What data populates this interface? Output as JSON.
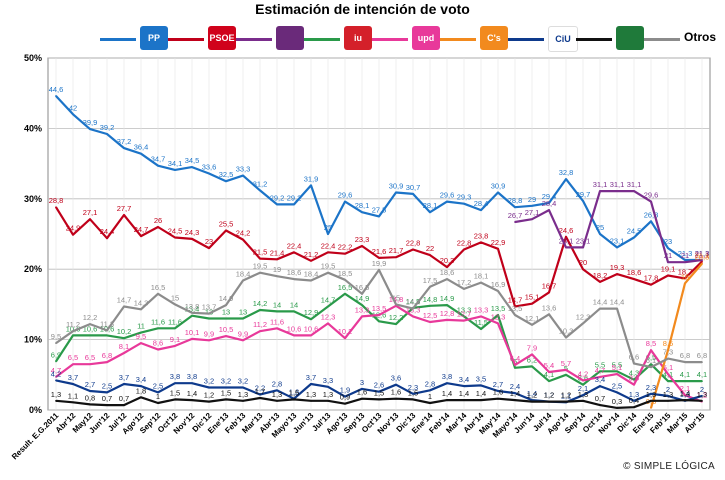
{
  "page": {
    "title": "Estimación de intención de voto",
    "credit": "© SIMPLE LÓGICA"
  },
  "legend": [
    {
      "key": "PP",
      "label": "PP",
      "color": "#1c74c8",
      "logo_bg": "#1c74c8",
      "text": false
    },
    {
      "key": "PSOE",
      "label": "PSOE",
      "color": "#c0001a",
      "logo_bg": "#d0021b",
      "text": false
    },
    {
      "key": "Podemos",
      "label": "",
      "color": "#7a2d8c",
      "logo_bg": "#6a2a7a",
      "text": false
    },
    {
      "key": "IU",
      "label": "iu",
      "color": "#2a9a4a",
      "logo_bg": "#d4202a",
      "text": false
    },
    {
      "key": "UPyD",
      "label": "upd",
      "color": "#e8399a",
      "logo_bg": "#e8399a",
      "text": false
    },
    {
      "key": "Cs",
      "label": "C's",
      "color": "#f28a1e",
      "logo_bg": "#f28a1e",
      "text": false
    },
    {
      "key": "CiU",
      "label": "CiU",
      "color": "#0e3a8c",
      "logo_bg": "#ffffff",
      "text": false
    },
    {
      "key": "PNV",
      "label": "",
      "color": "#111111",
      "logo_bg": "#1f7a3a",
      "text": false
    },
    {
      "key": "Otros",
      "label": "Otros",
      "color": "#8c8c8c",
      "logo_bg": "",
      "text": true
    }
  ],
  "chart_data": {
    "type": "line",
    "title": "Estimación de intención de voto",
    "ylim": [
      0,
      50
    ],
    "yticks": [
      "0%",
      "10%",
      "20%",
      "30%",
      "40%",
      "50%"
    ],
    "ytick_values": [
      0,
      10,
      20,
      30,
      40,
      50
    ],
    "grid": true,
    "categories": [
      "Result. E.G.2011",
      "Abr'12",
      "May12",
      "Jun'12",
      "Jul'12",
      "Ago'12",
      "Sep'12",
      "Oct'12",
      "Nov'12",
      "Dic'12",
      "Ene'13",
      "Feb'13",
      "Mar'13",
      "Abr'13",
      "May'13",
      "Jun'13",
      "Jul'13",
      "Ago'13",
      "Sep'13",
      "Oct'13",
      "Nov'13",
      "Dic'13",
      "Ene'14",
      "Feb'14",
      "Mar'14",
      "Abr'14",
      "May'14",
      "Mayo'14",
      "Jun'14",
      "Jul'14",
      "Ago'14",
      "Sep'14",
      "Oct'14",
      "Nov'14",
      "Dic'14",
      "Ene'15",
      "Feb'15",
      "Mar'15",
      "Abr'15"
    ],
    "x_labels": [
      "Result. E.G.2011",
      "Abr'12",
      "May12",
      "Jun'12",
      "Jul'12",
      "Ago'12",
      "Sep'12",
      "Oct'12",
      "Nov'12",
      "Dic'12",
      "Ene'13",
      "Feb'13",
      "Mar'13",
      "Abr'13",
      "Mayo'13",
      "Jun'13",
      "Jul'13",
      "Ago'13",
      "Sep'13",
      "Oct'13",
      "Nov'13",
      "Dic'13",
      "Ene'14",
      "Feb'14",
      "Mar'14",
      "Abr'14",
      "May'14",
      "Mayo'14",
      "Jun'14",
      "Jul'14",
      "Ago'14",
      "Sep'14",
      "Oct'14",
      "Nov'14",
      "Dic'14",
      "Ene'15",
      "Feb'15",
      "Mar'15",
      "Abr'15"
    ],
    "series": [
      {
        "name": "PP",
        "color": "#1c74c8",
        "values": [
          44.6,
          42.0,
          39.9,
          39.2,
          37.2,
          36.4,
          34.7,
          34.1,
          34.5,
          33.6,
          32.5,
          33.3,
          31.2,
          29.2,
          29.2,
          31.9,
          25.0,
          29.6,
          28.1,
          27.5,
          30.9,
          30.7,
          28.1,
          29.6,
          29.3,
          28.4,
          30.9,
          28.8,
          29.0,
          29.4,
          32.8,
          29.7,
          25.0,
          23.1,
          24.5,
          26.8,
          23.0,
          21.3,
          21.3
        ]
      },
      {
        "name": "PSOE",
        "color": "#c0001a",
        "values": [
          28.8,
          24.9,
          27.1,
          24.4,
          27.7,
          24.7,
          26.0,
          24.5,
          24.3,
          23.0,
          25.5,
          24.2,
          21.5,
          21.4,
          22.4,
          21.2,
          22.4,
          22.2,
          23.3,
          21.6,
          21.7,
          22.8,
          22.0,
          20.3,
          22.8,
          23.8,
          22.9,
          14.7,
          15.1,
          16.7,
          24.6,
          20.0,
          18.2,
          19.3,
          18.6,
          17.8,
          19.1,
          18.7,
          21.1
        ]
      },
      {
        "name": "Podemos",
        "color": "#7a2d8c",
        "values": [
          null,
          null,
          null,
          null,
          null,
          null,
          null,
          null,
          null,
          null,
          null,
          null,
          null,
          null,
          null,
          null,
          null,
          null,
          null,
          null,
          null,
          null,
          null,
          null,
          null,
          null,
          null,
          26.7,
          27.1,
          28.4,
          23.1,
          23.1,
          31.1,
          31.1,
          31.1,
          29.6,
          21.0,
          21.0,
          21.3
        ]
      },
      {
        "name": "IU",
        "color": "#2a9a4a",
        "values": [
          6.9,
          10.6,
          10.6,
          10.6,
          10.2,
          11.0,
          11.6,
          11.6,
          13.4,
          13.0,
          13.0,
          13.0,
          14.2,
          14.0,
          14.0,
          12.9,
          14.7,
          16.5,
          14.9,
          12.6,
          12.2,
          14.5,
          14.8,
          14.9,
          13.3,
          11.5,
          13.5,
          6.0,
          6.2,
          4.1,
          5.0,
          3.6,
          5.5,
          5.5,
          4.3,
          6.5,
          4.1,
          4.1,
          4.1
        ]
      },
      {
        "name": "UPyD",
        "color": "#e8399a",
        "values": [
          4.7,
          6.5,
          6.5,
          6.8,
          8.1,
          9.5,
          8.6,
          9.1,
          10.1,
          9.9,
          10.5,
          9.9,
          11.2,
          11.6,
          10.6,
          10.6,
          12.3,
          10.2,
          13.3,
          13.5,
          14.8,
          13.3,
          12.5,
          12.8,
          12.7,
          13.3,
          12.3,
          6.4,
          7.9,
          5.4,
          5.7,
          4.2,
          4.7,
          5.1,
          3.6,
          8.5,
          5.1,
          2.1,
          1.2
        ]
      },
      {
        "name": "C's",
        "color": "#f28a1e",
        "values": [
          null,
          null,
          null,
          null,
          null,
          null,
          null,
          null,
          null,
          null,
          null,
          null,
          null,
          null,
          null,
          null,
          null,
          null,
          null,
          null,
          null,
          null,
          null,
          null,
          null,
          null,
          null,
          null,
          null,
          null,
          null,
          null,
          null,
          null,
          null,
          0.3,
          8.5,
          18.0,
          20.8
        ]
      },
      {
        "name": "CiU",
        "color": "#0e3a8c",
        "values": [
          4.2,
          3.7,
          2.7,
          2.5,
          3.7,
          3.4,
          2.5,
          3.8,
          3.8,
          3.2,
          3.2,
          3.2,
          2.2,
          2.8,
          1.6,
          3.7,
          3.3,
          1.9,
          3.0,
          2.6,
          3.6,
          2.3,
          2.8,
          3.8,
          3.4,
          3.5,
          2.7,
          2.4,
          1.4,
          1.2,
          1.1,
          2.1,
          3.4,
          2.5,
          1.3,
          2.3,
          2.0,
          1.3,
          2.0
        ]
      },
      {
        "name": "PNV",
        "color": "#111111",
        "values": [
          1.3,
          1.1,
          0.8,
          0.7,
          0.7,
          1.8,
          1.0,
          1.5,
          1.4,
          1.2,
          1.5,
          1.3,
          1.7,
          1.3,
          1.5,
          1.3,
          1.3,
          0.9,
          1.6,
          1.5,
          1.6,
          1.5,
          1.0,
          1.4,
          1.4,
          1.4,
          1.6,
          1.4,
          1.2,
          1.2,
          1.2,
          1.3,
          0.7,
          0.3,
          0.4,
          1.3,
          1.3,
          1.4,
          1.3
        ]
      },
      {
        "name": "Otros",
        "color": "#8c8c8c",
        "values": [
          9.5,
          11.2,
          12.2,
          11.3,
          14.7,
          14.3,
          16.5,
          15.0,
          13.8,
          13.7,
          14.9,
          18.4,
          19.5,
          19.0,
          18.6,
          18.4,
          19.5,
          18.5,
          16.5,
          19.9,
          15.0,
          14.4,
          17.5,
          18.6,
          17.2,
          18.1,
          16.9,
          13.5,
          12.1,
          13.6,
          10.3,
          12.3,
          14.4,
          14.4,
          6.6,
          6.1,
          7.3,
          6.8,
          6.8
        ]
      }
    ]
  }
}
